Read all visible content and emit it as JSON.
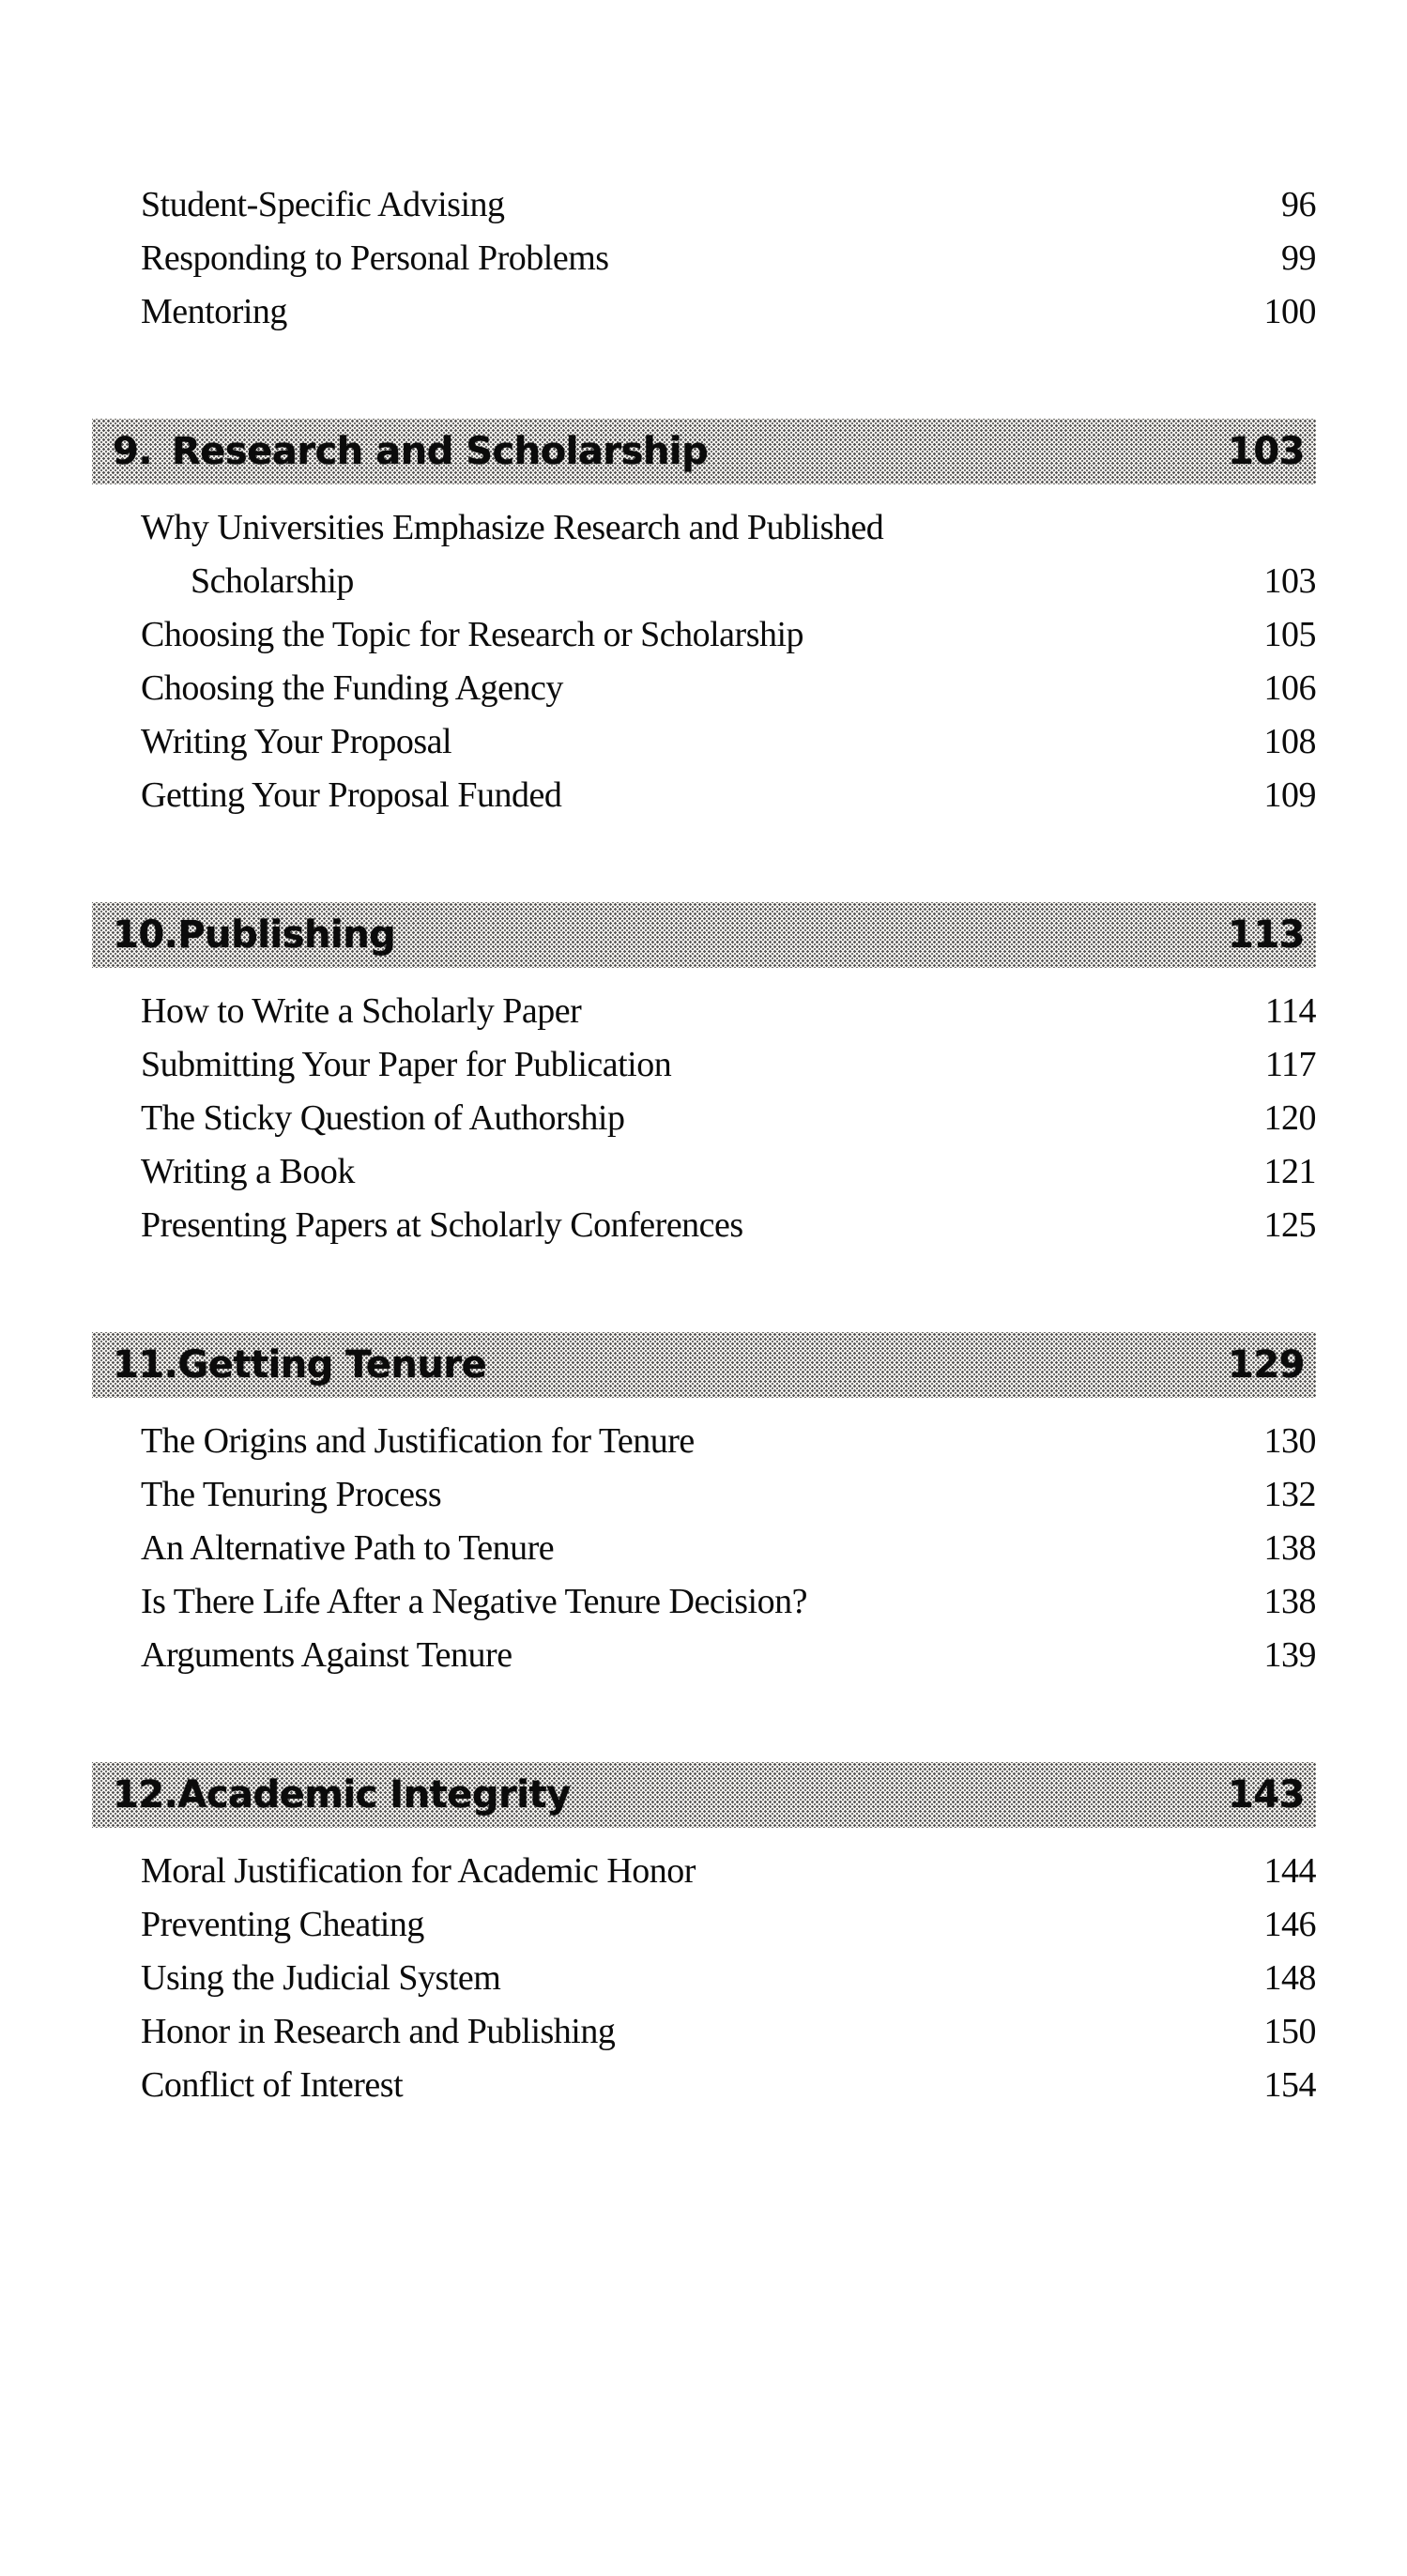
{
  "colors": {
    "background": "#ffffff",
    "text": "#0b0b0b",
    "header_bar_halftone_avg": "#bdbdbd"
  },
  "toc": {
    "leading_entries": [
      {
        "title": "Student-Specific Advising",
        "page": "96"
      },
      {
        "title": "Responding to Personal Problems",
        "page": "99"
      },
      {
        "title": "Mentoring",
        "page": "100"
      }
    ],
    "chapters": [
      {
        "number": "9.",
        "title": "Research and Scholarship",
        "page": "103",
        "wrapped_entry": {
          "line1": "Why Universities Emphasize Research and Published",
          "line2": "Scholarship",
          "page": "103"
        },
        "entries": [
          {
            "title": "Choosing the Topic for Research or Scholarship",
            "page": "105"
          },
          {
            "title": "Choosing the Funding Agency",
            "page": "106"
          },
          {
            "title": "Writing Your Proposal",
            "page": "108"
          },
          {
            "title": "Getting Your Proposal Funded",
            "page": "109"
          }
        ]
      },
      {
        "number": "10.",
        "title": "Publishing",
        "page": "113",
        "entries": [
          {
            "title": "How to Write a Scholarly Paper",
            "page": "114"
          },
          {
            "title": "Submitting Your Paper for Publication",
            "page": "117"
          },
          {
            "title": "The Sticky Question of Authorship",
            "page": "120"
          },
          {
            "title": "Writing a Book",
            "page": "121"
          },
          {
            "title": "Presenting Papers at Scholarly Conferences",
            "page": "125"
          }
        ]
      },
      {
        "number": "11.",
        "title": "Getting Tenure",
        "page": "129",
        "entries": [
          {
            "title": "The Origins and Justification for Tenure",
            "page": "130"
          },
          {
            "title": "The Tenuring Process",
            "page": "132"
          },
          {
            "title": "An Alternative Path to Tenure",
            "page": "138"
          },
          {
            "title": "Is There Life After a Negative Tenure Decision?",
            "page": "138"
          },
          {
            "title": "Arguments Against Tenure",
            "page": "139"
          }
        ]
      },
      {
        "number": "12.",
        "title": "Academic Integrity",
        "page": "143",
        "entries": [
          {
            "title": "Moral Justification for Academic Honor",
            "page": "144"
          },
          {
            "title": "Preventing Cheating",
            "page": "146"
          },
          {
            "title": "Using the Judicial System",
            "page": "148"
          },
          {
            "title": "Honor in Research and Publishing",
            "page": "150"
          },
          {
            "title": "Conflict of Interest",
            "page": "154"
          }
        ]
      }
    ]
  }
}
